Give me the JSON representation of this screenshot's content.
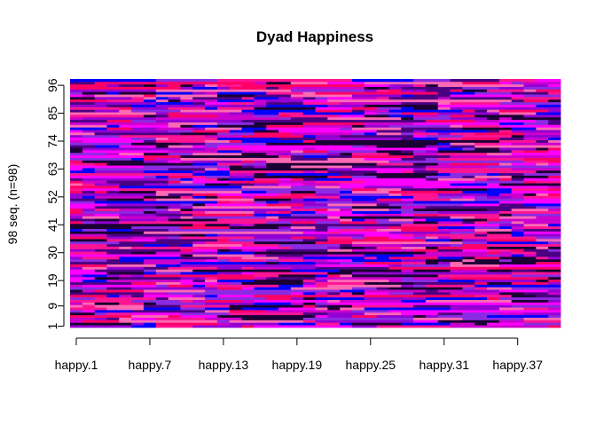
{
  "chart_data": {
    "type": "heatmap",
    "title": "Dyad Happiness",
    "ylabel": "98 seq. (n=98)",
    "xlabel": "",
    "n_sequences": 98,
    "n_positions": 40,
    "x_ticks": [
      {
        "label": "happy.1",
        "position": 1
      },
      {
        "label": "happy.7",
        "position": 7
      },
      {
        "label": "happy.13",
        "position": 13
      },
      {
        "label": "happy.19",
        "position": 19
      },
      {
        "label": "happy.25",
        "position": 25
      },
      {
        "label": "happy.31",
        "position": 31
      },
      {
        "label": "happy.37",
        "position": 37
      }
    ],
    "y_ticks": [
      {
        "label": "1",
        "position": 1
      },
      {
        "label": "9",
        "position": 9
      },
      {
        "label": "19",
        "position": 19
      },
      {
        "label": "30",
        "position": 30
      },
      {
        "label": "41",
        "position": 41
      },
      {
        "label": "52",
        "position": 52
      },
      {
        "label": "63",
        "position": 63
      },
      {
        "label": "74",
        "position": 74
      },
      {
        "label": "85",
        "position": 85
      },
      {
        "label": "96",
        "position": 96
      }
    ],
    "state_colors": [
      "#ff00ff",
      "#ff1493",
      "#8a2be2",
      "#0000ff",
      "#ff0066",
      "#9400d3",
      "#cc00cc",
      "#4b0082",
      "#ff69b4",
      "#1a0033"
    ]
  }
}
